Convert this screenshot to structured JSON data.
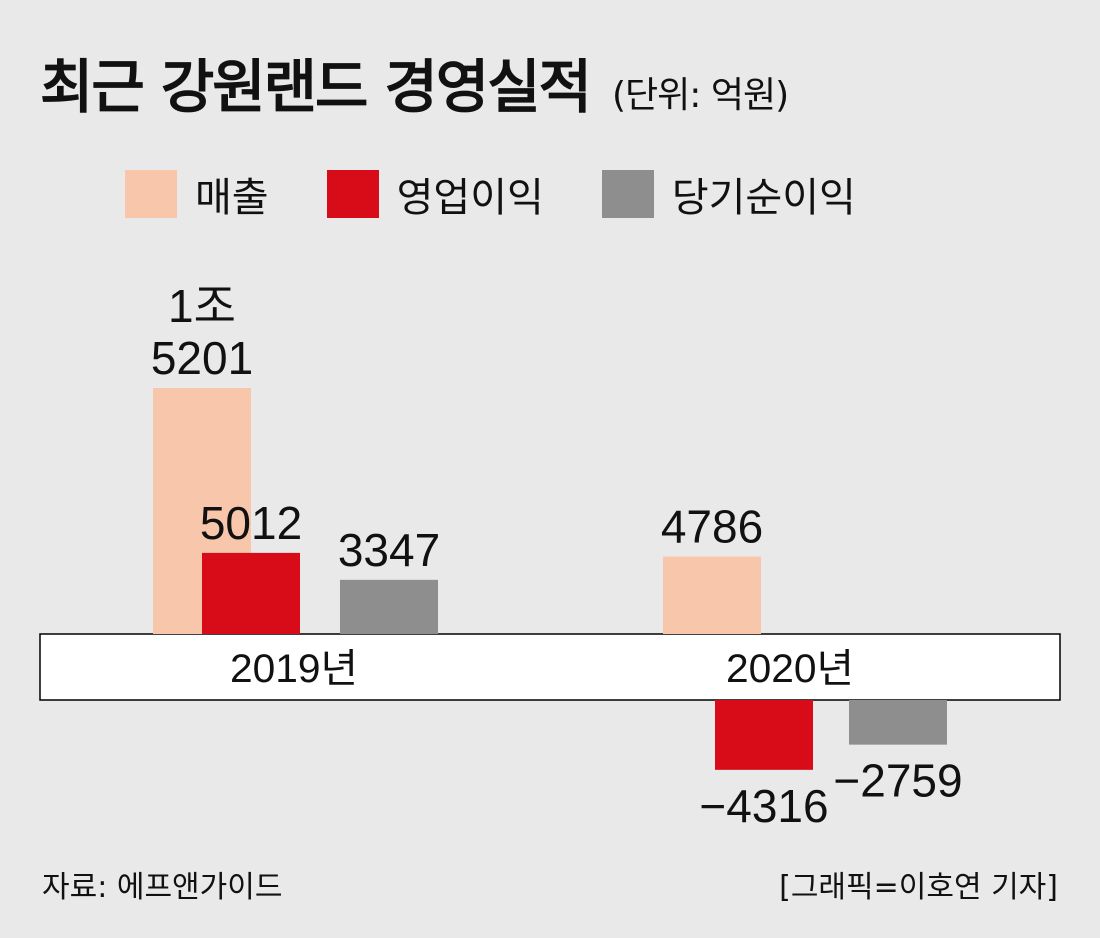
{
  "title": "최근 강원랜드 경영실적",
  "unit": "(단위: 억원)",
  "source": "자료: 에프앤가이드",
  "credit": "[그래픽=이호연 기자]",
  "colors": {
    "sales": "#f8c7ab",
    "operating": "#d80c18",
    "net": "#8e8e8e",
    "background": "#e9e9e9",
    "band": "#ffffff"
  },
  "chart_data": {
    "type": "bar",
    "categories": [
      "2019년",
      "2020년"
    ],
    "series": [
      {
        "name": "매출",
        "values": [
          15201,
          4786
        ],
        "labels": [
          "1조\n5201",
          "4786"
        ]
      },
      {
        "name": "영업이익",
        "values": [
          5012,
          -4316
        ],
        "labels": [
          "5012",
          "−4316"
        ]
      },
      {
        "name": "당기순이익",
        "values": [
          3347,
          -2759
        ],
        "labels": [
          "3347",
          "−2759"
        ]
      }
    ],
    "grid": false,
    "legend": "top-left"
  }
}
